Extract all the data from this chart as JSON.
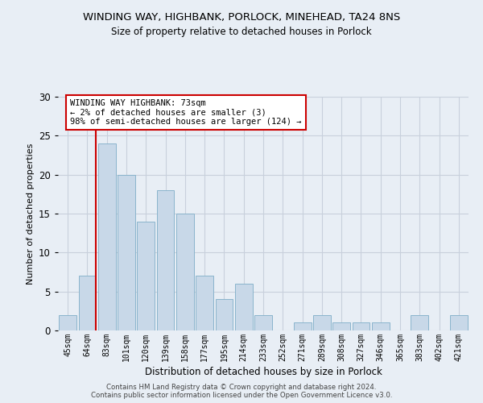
{
  "title": "WINDING WAY, HIGHBANK, PORLOCK, MINEHEAD, TA24 8NS",
  "subtitle": "Size of property relative to detached houses in Porlock",
  "xlabel": "Distribution of detached houses by size in Porlock",
  "ylabel": "Number of detached properties",
  "categories": [
    "45sqm",
    "64sqm",
    "83sqm",
    "101sqm",
    "120sqm",
    "139sqm",
    "158sqm",
    "177sqm",
    "195sqm",
    "214sqm",
    "233sqm",
    "252sqm",
    "271sqm",
    "289sqm",
    "308sqm",
    "327sqm",
    "346sqm",
    "365sqm",
    "383sqm",
    "402sqm",
    "421sqm"
  ],
  "values": [
    2,
    7,
    24,
    20,
    14,
    18,
    15,
    7,
    4,
    6,
    2,
    0,
    1,
    2,
    1,
    1,
    1,
    0,
    2,
    0,
    2
  ],
  "bar_color": "#c8d8e8",
  "bar_edge_color": "#8ab4cc",
  "grid_color": "#c8d0dc",
  "background_color": "#e8eef5",
  "vline_x": 1.42,
  "vline_color": "#cc0000",
  "annotation_text": "WINDING WAY HIGHBANK: 73sqm\n← 2% of detached houses are smaller (3)\n98% of semi-detached houses are larger (124) →",
  "annotation_box_color": "#ffffff",
  "annotation_box_edge": "#cc0000",
  "ylim": [
    0,
    30
  ],
  "yticks": [
    0,
    5,
    10,
    15,
    20,
    25,
    30
  ],
  "footer_line1": "Contains HM Land Registry data © Crown copyright and database right 2024.",
  "footer_line2": "Contains public sector information licensed under the Open Government Licence v3.0."
}
